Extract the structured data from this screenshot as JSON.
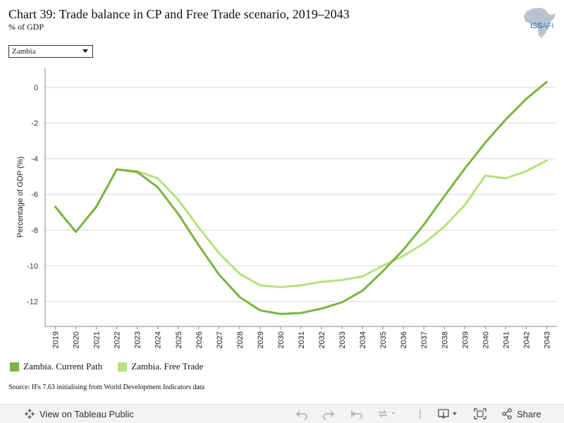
{
  "header": {
    "title": "Chart 39: Trade balance in CP and Free Trade scenario, 2019–2043",
    "subtitle": "% of GDP",
    "logo_text": "ISS",
    "logo_text_suffix": "AFI"
  },
  "filter": {
    "selected": "Zambia"
  },
  "source": "Source: IFs 7.63 initialising from World Development Indicators data",
  "toolbar": {
    "view_label": "View on Tableau Public",
    "share_label": "Share"
  },
  "colors": {
    "current_path": "#7cb342",
    "free_trade": "#b7e07e",
    "grid": "#d9d9d9",
    "axis": "#888888"
  },
  "chart_data": {
    "type": "line",
    "ylabel": "Percentage of GDP (%)",
    "ylim": [
      -13.4,
      1.1
    ],
    "yticks": [
      0,
      -2,
      -4,
      -6,
      -8,
      -10,
      -12
    ],
    "grid": true,
    "legend_position": "bottom-left",
    "x": [
      "2019",
      "2020",
      "2021",
      "2022",
      "2023",
      "2024",
      "2025",
      "2026",
      "2027",
      "2028",
      "2029",
      "2030",
      "2031",
      "2032",
      "2033",
      "2034",
      "2035",
      "2036",
      "2037",
      "2038",
      "2039",
      "2040",
      "2041",
      "2042",
      "2043"
    ],
    "series": [
      {
        "name": "Zambia. Current Path",
        "color": "#7cb342",
        "values": [
          -6.7,
          -8.1,
          -6.7,
          -4.6,
          -4.75,
          -5.6,
          -7.1,
          -8.85,
          -10.5,
          -11.75,
          -12.5,
          -12.7,
          -12.65,
          -12.4,
          -12.05,
          -11.4,
          -10.3,
          -9.1,
          -7.7,
          -6.1,
          -4.55,
          -3.1,
          -1.8,
          -0.65,
          0.3
        ]
      },
      {
        "name": "Zambia. Free Trade",
        "color": "#b7e07e",
        "values": [
          -6.7,
          -8.1,
          -6.7,
          -4.6,
          -4.7,
          -5.1,
          -6.3,
          -7.85,
          -9.3,
          -10.45,
          -11.1,
          -11.2,
          -11.1,
          -10.9,
          -10.8,
          -10.6,
          -10.0,
          -9.45,
          -8.75,
          -7.8,
          -6.6,
          -4.95,
          -5.1,
          -4.7,
          -4.1
        ]
      }
    ]
  }
}
